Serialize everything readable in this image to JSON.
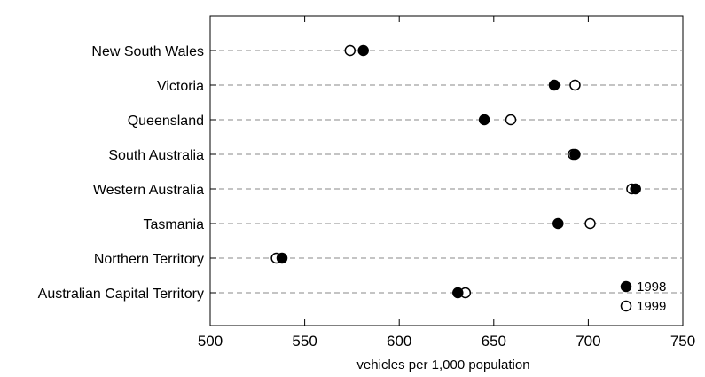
{
  "chart_data": {
    "type": "scatter",
    "title": "",
    "xlabel": "vehicles per 1,000 population",
    "ylabel": "",
    "xlim": [
      500,
      750
    ],
    "xticks": [
      500,
      550,
      600,
      650,
      700,
      750
    ],
    "grid": "horizontal dashed",
    "legend_position": "bottom-right",
    "categories": [
      "New South Wales",
      "Victoria",
      "Queensland",
      "South Australia",
      "Western Australia",
      "Tasmania",
      "Northern Territory",
      "Australian Capital Territory"
    ],
    "series": [
      {
        "name": "1998",
        "marker": "filled-circle",
        "color": "#000000",
        "values": [
          581,
          682,
          645,
          693,
          725,
          684,
          538,
          631
        ]
      },
      {
        "name": "1999",
        "marker": "open-circle",
        "color": "#000000",
        "values": [
          574,
          693,
          659,
          692,
          723,
          701,
          535,
          635
        ]
      }
    ]
  }
}
